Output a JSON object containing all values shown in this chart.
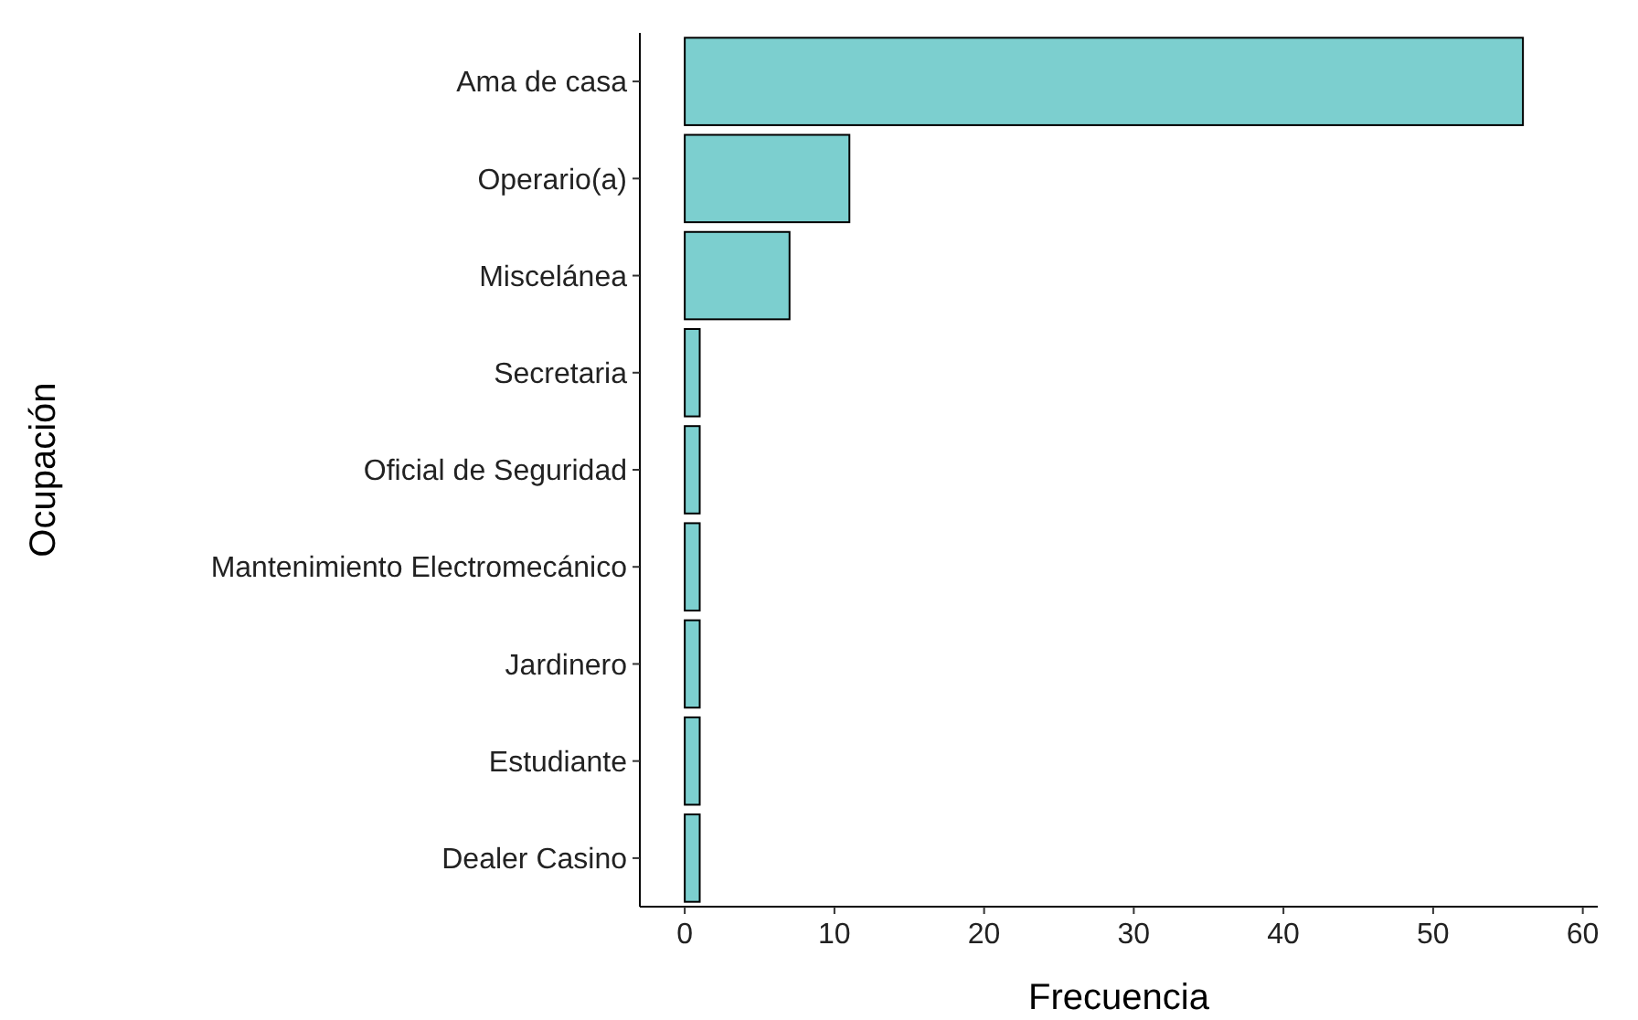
{
  "chart_data": {
    "type": "bar",
    "orientation": "horizontal",
    "xlabel": "Frecuencia",
    "ylabel": "Ocupación",
    "categories": [
      "Ama de casa",
      "Operario(a)",
      "Miscelánea",
      "Secretaria",
      "Oficial de Seguridad",
      "Mantenimiento Electromecánico",
      "Jardinero",
      "Estudiante",
      "Dealer Casino"
    ],
    "values": [
      56,
      11,
      7,
      1,
      1,
      1,
      1,
      1,
      1
    ],
    "color": "#7ccfcf",
    "xlim": [
      -3,
      61
    ],
    "xticks": [
      0,
      10,
      20,
      30,
      40,
      50,
      60
    ],
    "grid": false
  }
}
